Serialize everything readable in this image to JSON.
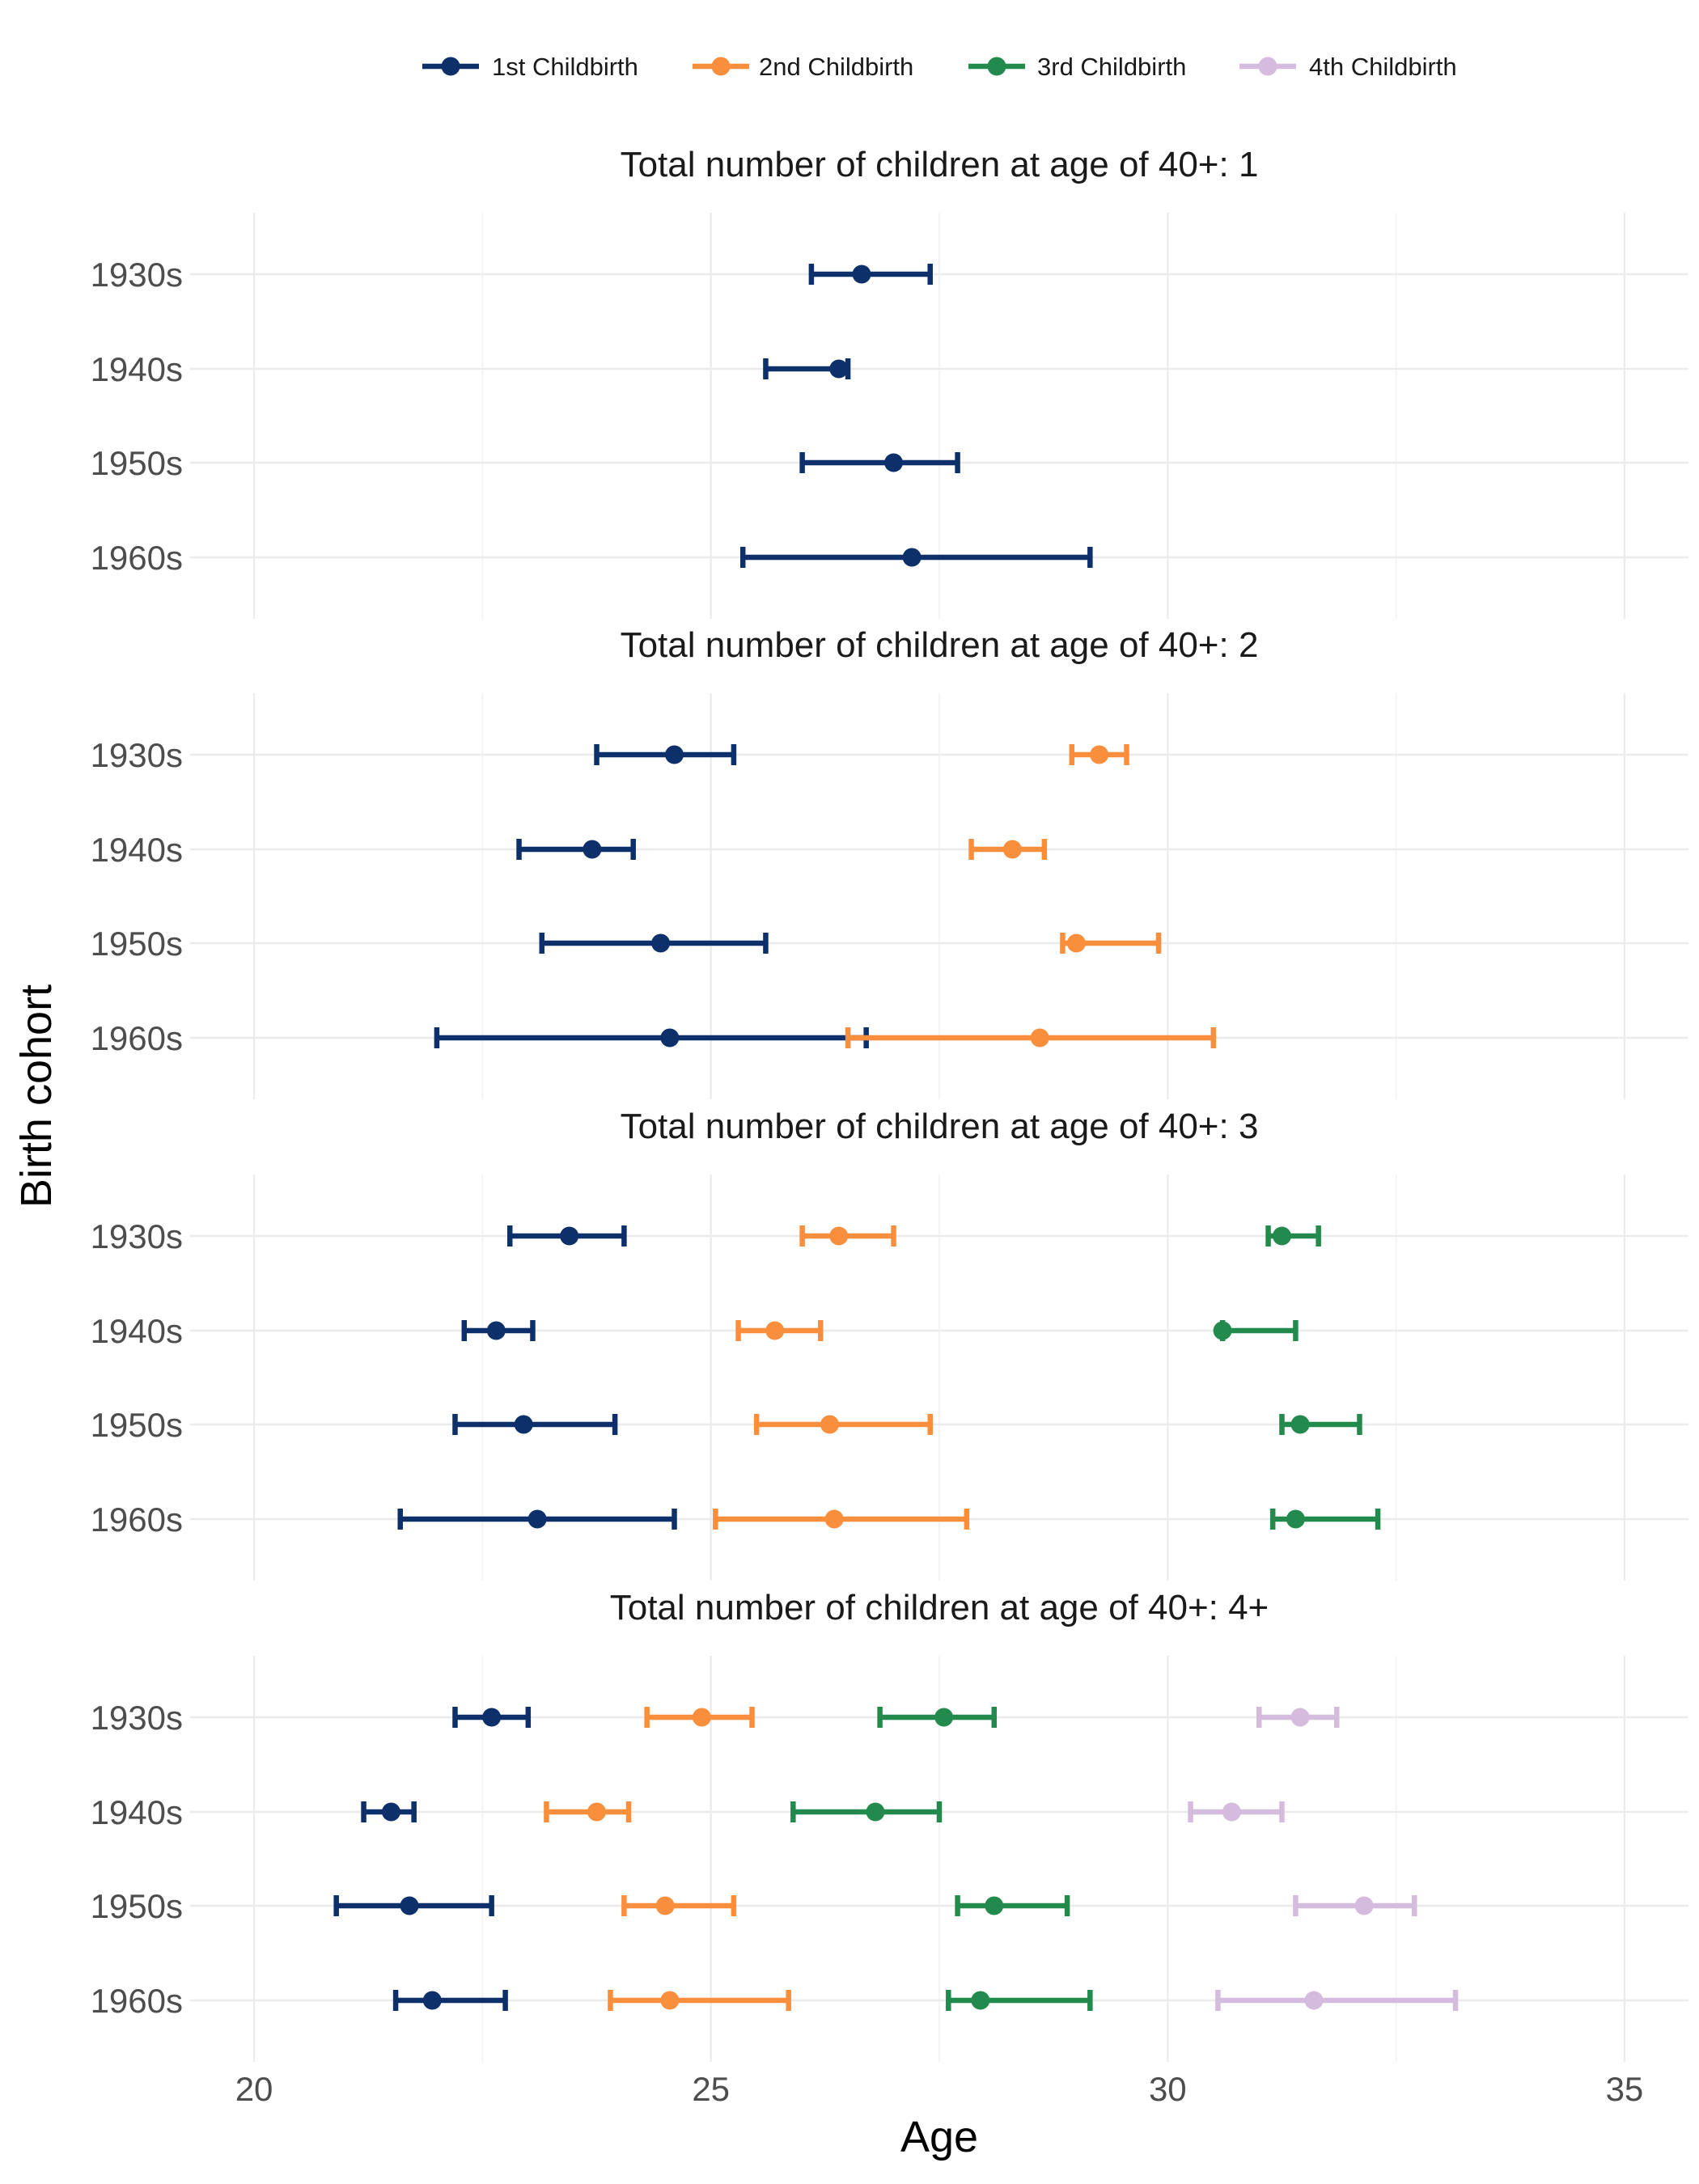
{
  "chart_data": {
    "type": "errorbar",
    "xlabel": "Age",
    "ylabel": "Birth cohort",
    "xlim": [
      19.3,
      35.7
    ],
    "x_ticks": [
      "20",
      "25",
      "30",
      "35"
    ],
    "x_tick_values": [
      20,
      25,
      30,
      35
    ],
    "cohorts": [
      "1930s",
      "1940s",
      "1950s",
      "1960s"
    ],
    "grid": true,
    "legend_position": "top",
    "series": [
      {
        "name": "1st Childbirth",
        "color": "#0d2f6a"
      },
      {
        "name": "2nd Childbirth",
        "color": "#f98e3c"
      },
      {
        "name": "3rd Childbirth",
        "color": "#228a4c"
      },
      {
        "name": "4th Childbirth",
        "color": "#d5bbdd"
      }
    ],
    "panels": [
      {
        "title": "Total number of children at age of 40+: 1",
        "data": [
          {
            "series": 0,
            "points": [
              {
                "cohort": "1930s",
                "mean": 26.65,
                "low": 26.1,
                "high": 27.4
              },
              {
                "cohort": "1940s",
                "mean": 26.4,
                "low": 25.6,
                "high": 26.5
              },
              {
                "cohort": "1950s",
                "mean": 27.0,
                "low": 26.0,
                "high": 27.7
              },
              {
                "cohort": "1960s",
                "mean": 27.2,
                "low": 25.35,
                "high": 29.15
              }
            ]
          }
        ]
      },
      {
        "title": "Total number of children at age of 40+: 2",
        "data": [
          {
            "series": 0,
            "points": [
              {
                "cohort": "1930s",
                "mean": 24.6,
                "low": 23.75,
                "high": 25.25
              },
              {
                "cohort": "1940s",
                "mean": 23.7,
                "low": 22.9,
                "high": 24.15
              },
              {
                "cohort": "1950s",
                "mean": 24.45,
                "low": 23.15,
                "high": 25.6
              },
              {
                "cohort": "1960s",
                "mean": 24.55,
                "low": 22.0,
                "high": 26.7
              }
            ]
          },
          {
            "series": 1,
            "points": [
              {
                "cohort": "1930s",
                "mean": 29.25,
                "low": 28.95,
                "high": 29.55
              },
              {
                "cohort": "1940s",
                "mean": 28.3,
                "low": 27.85,
                "high": 28.65
              },
              {
                "cohort": "1950s",
                "mean": 29.0,
                "low": 28.85,
                "high": 29.9
              },
              {
                "cohort": "1960s",
                "mean": 28.6,
                "low": 26.5,
                "high": 30.5
              }
            ]
          }
        ]
      },
      {
        "title": "Total number of children at age of 40+: 3",
        "data": [
          {
            "series": 0,
            "points": [
              {
                "cohort": "1930s",
                "mean": 23.45,
                "low": 22.8,
                "high": 24.05
              },
              {
                "cohort": "1940s",
                "mean": 22.65,
                "low": 22.3,
                "high": 23.05
              },
              {
                "cohort": "1950s",
                "mean": 22.95,
                "low": 22.2,
                "high": 23.95
              },
              {
                "cohort": "1960s",
                "mean": 23.1,
                "low": 21.6,
                "high": 24.6
              }
            ]
          },
          {
            "series": 1,
            "points": [
              {
                "cohort": "1930s",
                "mean": 26.4,
                "low": 26.0,
                "high": 27.0
              },
              {
                "cohort": "1940s",
                "mean": 25.7,
                "low": 25.3,
                "high": 26.2
              },
              {
                "cohort": "1950s",
                "mean": 26.3,
                "low": 25.5,
                "high": 27.4
              },
              {
                "cohort": "1960s",
                "mean": 26.35,
                "low": 25.05,
                "high": 27.8
              }
            ]
          },
          {
            "series": 2,
            "points": [
              {
                "cohort": "1930s",
                "mean": 31.25,
                "low": 31.1,
                "high": 31.65
              },
              {
                "cohort": "1940s",
                "mean": 30.6,
                "low": 30.6,
                "high": 31.4
              },
              {
                "cohort": "1950s",
                "mean": 31.45,
                "low": 31.25,
                "high": 32.1
              },
              {
                "cohort": "1960s",
                "mean": 31.4,
                "low": 31.15,
                "high": 32.3
              }
            ]
          }
        ]
      },
      {
        "title": "Total number of children at age of 40+: 4+",
        "data": [
          {
            "series": 0,
            "points": [
              {
                "cohort": "1930s",
                "mean": 22.6,
                "low": 22.2,
                "high": 23.0
              },
              {
                "cohort": "1940s",
                "mean": 21.5,
                "low": 21.2,
                "high": 21.75
              },
              {
                "cohort": "1950s",
                "mean": 21.7,
                "low": 20.9,
                "high": 22.6
              },
              {
                "cohort": "1960s",
                "mean": 21.95,
                "low": 21.55,
                "high": 22.75
              }
            ]
          },
          {
            "series": 1,
            "points": [
              {
                "cohort": "1930s",
                "mean": 24.9,
                "low": 24.3,
                "high": 25.45
              },
              {
                "cohort": "1940s",
                "mean": 23.75,
                "low": 23.2,
                "high": 24.1
              },
              {
                "cohort": "1950s",
                "mean": 24.5,
                "low": 24.05,
                "high": 25.25
              },
              {
                "cohort": "1960s",
                "mean": 24.55,
                "low": 23.9,
                "high": 25.85
              }
            ]
          },
          {
            "series": 2,
            "points": [
              {
                "cohort": "1930s",
                "mean": 27.55,
                "low": 26.85,
                "high": 28.1
              },
              {
                "cohort": "1940s",
                "mean": 26.8,
                "low": 25.9,
                "high": 27.5
              },
              {
                "cohort": "1950s",
                "mean": 28.1,
                "low": 27.7,
                "high": 28.9
              },
              {
                "cohort": "1960s",
                "mean": 27.95,
                "low": 27.6,
                "high": 29.15
              }
            ]
          },
          {
            "series": 3,
            "points": [
              {
                "cohort": "1930s",
                "mean": 31.45,
                "low": 31.0,
                "high": 31.85
              },
              {
                "cohort": "1940s",
                "mean": 30.7,
                "low": 30.25,
                "high": 31.25
              },
              {
                "cohort": "1950s",
                "mean": 32.15,
                "low": 31.4,
                "high": 32.7
              },
              {
                "cohort": "1960s",
                "mean": 31.6,
                "low": 30.55,
                "high": 33.15
              }
            ]
          }
        ]
      }
    ]
  }
}
